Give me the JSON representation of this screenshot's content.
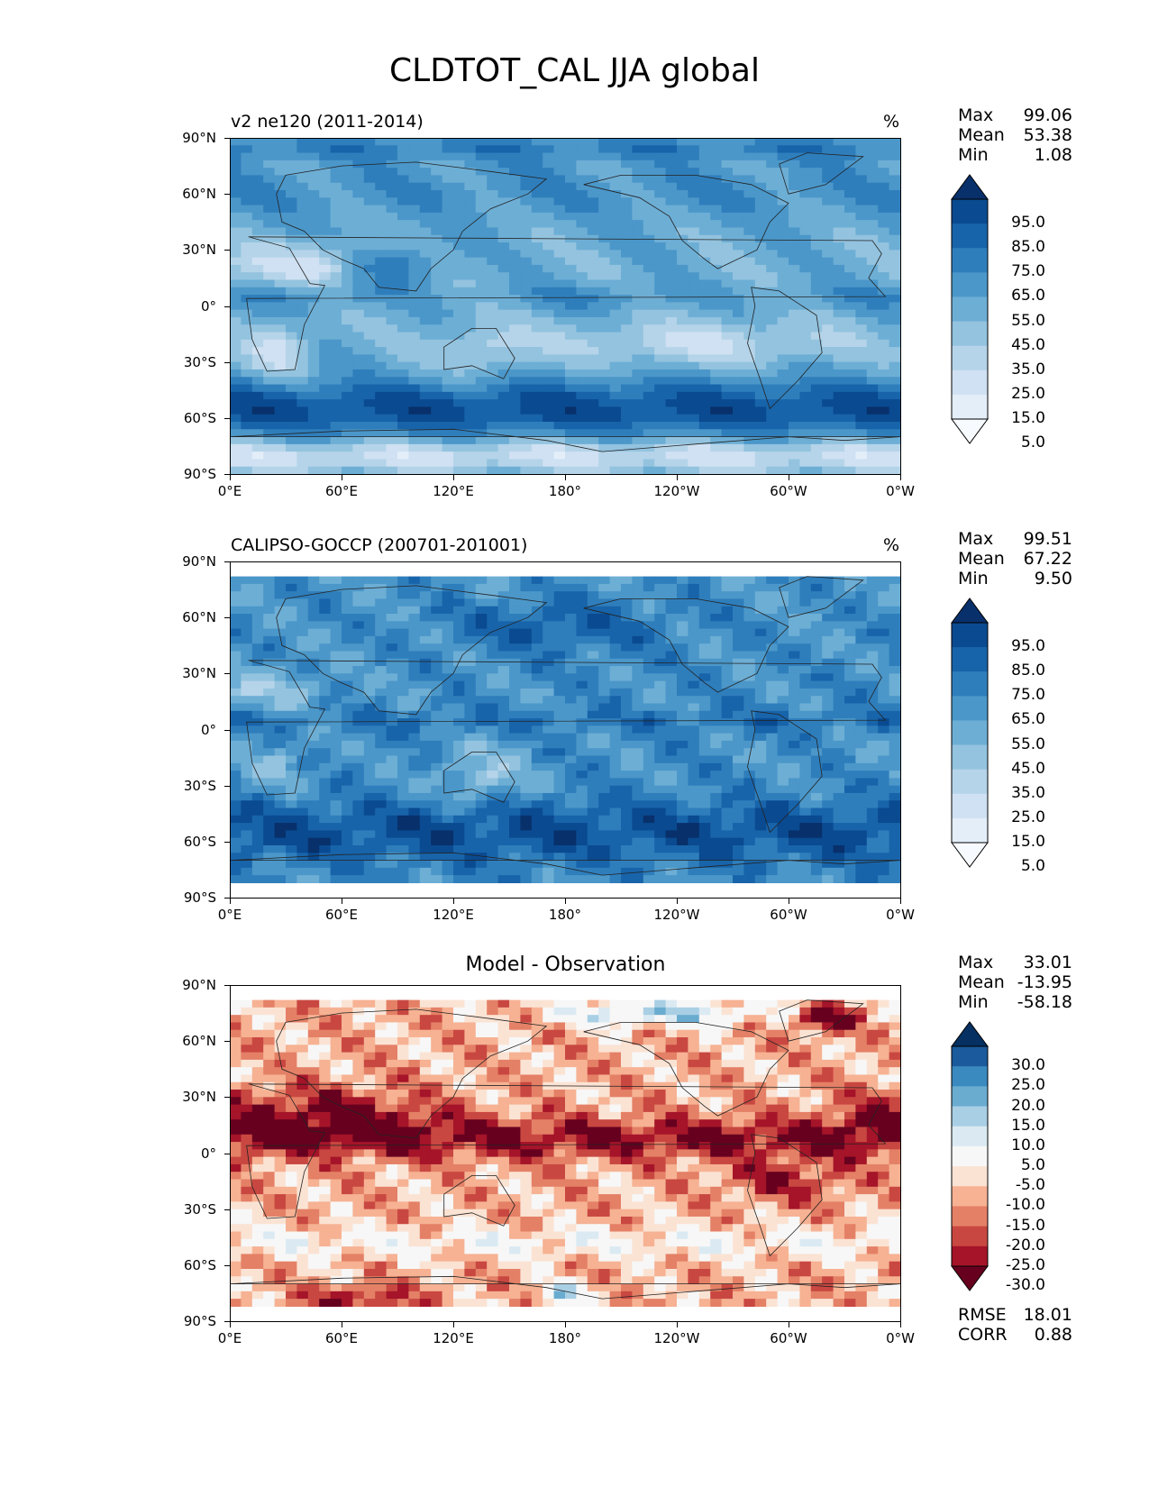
{
  "title": "CLDTOT_CAL JJA global",
  "units": "%",
  "lat_ticks": [
    "90°N",
    "60°N",
    "30°N",
    "0°",
    "30°S",
    "60°S",
    "90°S"
  ],
  "lon_ticks": [
    "0°E",
    "60°E",
    "120°E",
    "180°",
    "120°W",
    "60°W",
    "0°W"
  ],
  "seq_colors": [
    "#f7fbff",
    "#e3eef9",
    "#cfe1f2",
    "#b5d4e9",
    "#93c3df",
    "#6daed5",
    "#4b97c9",
    "#2f7ebc",
    "#1864aa",
    "#0a4a90",
    "#08306b"
  ],
  "div_colors": [
    "#67001f",
    "#a51429",
    "#c94741",
    "#e48066",
    "#f6b293",
    "#fbe3d4",
    "#f7f7f7",
    "#dbeaf2",
    "#a9cfe5",
    "#6aacd0",
    "#3a89bf",
    "#1b5a9c",
    "#053061"
  ],
  "chart_data": [
    {
      "type": "heatmap",
      "name": "model",
      "title": "v2 ne120 (2011-2014)",
      "units": "%",
      "stats": [
        {
          "label": "Max",
          "value": "99.06"
        },
        {
          "label": "Mean",
          "value": "53.38"
        },
        {
          "label": "Min",
          "value": "1.08"
        }
      ],
      "colorbar_ticks": [
        "95.0",
        "85.0",
        "75.0",
        "65.0",
        "55.0",
        "45.0",
        "35.0",
        "25.0",
        "15.0",
        "5.0"
      ],
      "colorbar_levels": [
        0,
        5,
        15,
        25,
        35,
        45,
        55,
        65,
        75,
        85,
        95,
        100
      ],
      "xlim": [
        0,
        360
      ],
      "ylim": [
        -90,
        90
      ]
    },
    {
      "type": "heatmap",
      "name": "obs",
      "title": "CALIPSO-GOCCP (200701-201001)",
      "units": "%",
      "stats": [
        {
          "label": "Max",
          "value": "99.51"
        },
        {
          "label": "Mean",
          "value": "67.22"
        },
        {
          "label": "Min",
          "value": "9.50"
        }
      ],
      "colorbar_ticks": [
        "95.0",
        "85.0",
        "75.0",
        "65.0",
        "55.0",
        "45.0",
        "35.0",
        "25.0",
        "15.0",
        "5.0"
      ],
      "colorbar_levels": [
        0,
        5,
        15,
        25,
        35,
        45,
        55,
        65,
        75,
        85,
        95,
        100
      ],
      "xlim": [
        0,
        360
      ],
      "ylim": [
        -90,
        90
      ],
      "data_lat_range": [
        -82,
        82
      ]
    },
    {
      "type": "heatmap",
      "name": "diff",
      "title": "Model - Observation",
      "stats": [
        {
          "label": "Max",
          "value": "33.01"
        },
        {
          "label": "Mean",
          "value": "-13.95"
        },
        {
          "label": "Min",
          "value": "-58.18"
        }
      ],
      "extra_stats": [
        {
          "label": "RMSE",
          "value": "18.01"
        },
        {
          "label": "CORR",
          "value": "0.88"
        }
      ],
      "colorbar_ticks": [
        "30.0",
        "25.0",
        "20.0",
        "15.0",
        "10.0",
        "5.0",
        "-5.0",
        "-10.0",
        "-15.0",
        "-20.0",
        "-25.0",
        "-30.0"
      ],
      "colorbar_levels": [
        -35,
        -30,
        -25,
        -20,
        -15,
        -10,
        -5,
        5,
        10,
        15,
        20,
        25,
        30,
        35
      ],
      "xlim": [
        0,
        360
      ],
      "ylim": [
        -90,
        90
      ],
      "data_lat_range": [
        -82,
        82
      ]
    }
  ]
}
